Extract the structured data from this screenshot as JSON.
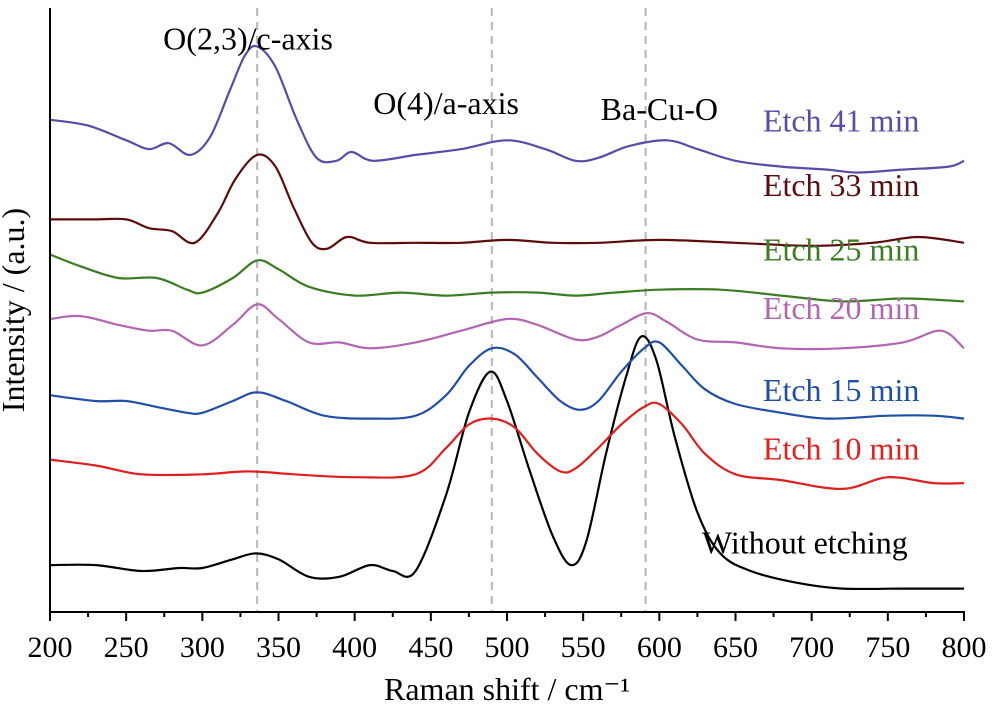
{
  "chart_data": {
    "type": "line",
    "xlabel": "Raman shift / cm⁻¹",
    "ylabel": "Intensity / (a.u.)",
    "xlim": [
      200,
      800
    ],
    "ylim": [
      0,
      100
    ],
    "xticks": [
      "200",
      "250",
      "300",
      "350",
      "400",
      "450",
      "500",
      "550",
      "600",
      "650",
      "700",
      "750",
      "800"
    ],
    "y_tick_labels": false,
    "grid": false,
    "reference_lines_x": [
      336,
      490,
      591
    ],
    "annotations": [
      {
        "text": "O(2,3)/c-axis",
        "x": 330,
        "y": 96
      },
      {
        "text": "O(4)/a-axis",
        "x": 460,
        "y": 85
      },
      {
        "text": "Ba-Cu-O",
        "x": 600,
        "y": 84
      }
    ],
    "series": [
      {
        "name": "Without etching",
        "color": "#000000",
        "points": [
          [
            200,
            8
          ],
          [
            230,
            8
          ],
          [
            260,
            7
          ],
          [
            285,
            7.5
          ],
          [
            300,
            7.5
          ],
          [
            320,
            9
          ],
          [
            335,
            10
          ],
          [
            350,
            9
          ],
          [
            370,
            6
          ],
          [
            390,
            6
          ],
          [
            410,
            8
          ],
          [
            425,
            7
          ],
          [
            440,
            7
          ],
          [
            460,
            20
          ],
          [
            475,
            34
          ],
          [
            489,
            41
          ],
          [
            500,
            36
          ],
          [
            515,
            24
          ],
          [
            530,
            13
          ],
          [
            542,
            8
          ],
          [
            552,
            12
          ],
          [
            565,
            27
          ],
          [
            578,
            40
          ],
          [
            588,
            47
          ],
          [
            598,
            43
          ],
          [
            610,
            30
          ],
          [
            625,
            17
          ],
          [
            640,
            10
          ],
          [
            660,
            7
          ],
          [
            690,
            5
          ],
          [
            720,
            4
          ],
          [
            760,
            4
          ],
          [
            800,
            4
          ]
        ]
      },
      {
        "name": "Etch 10 min",
        "color": "#e01f1f",
        "points": [
          [
            200,
            26
          ],
          [
            230,
            25
          ],
          [
            260,
            23.5
          ],
          [
            300,
            23.5
          ],
          [
            330,
            24
          ],
          [
            360,
            23.5
          ],
          [
            400,
            23
          ],
          [
            440,
            23.5
          ],
          [
            460,
            28
          ],
          [
            475,
            32
          ],
          [
            490,
            33
          ],
          [
            505,
            31.5
          ],
          [
            520,
            27
          ],
          [
            535,
            24
          ],
          [
            545,
            24.5
          ],
          [
            560,
            28
          ],
          [
            575,
            32
          ],
          [
            590,
            35
          ],
          [
            600,
            35.5
          ],
          [
            615,
            32
          ],
          [
            630,
            27
          ],
          [
            650,
            23.5
          ],
          [
            680,
            22.5
          ],
          [
            720,
            21
          ],
          [
            750,
            23
          ],
          [
            780,
            22
          ],
          [
            800,
            22
          ]
        ]
      },
      {
        "name": "Etch 15 min",
        "color": "#1f4fa6",
        "points": [
          [
            200,
            37
          ],
          [
            230,
            36
          ],
          [
            250,
            36
          ],
          [
            270,
            35
          ],
          [
            290,
            34
          ],
          [
            300,
            34
          ],
          [
            320,
            36
          ],
          [
            336,
            37.5
          ],
          [
            355,
            36
          ],
          [
            380,
            33.5
          ],
          [
            410,
            33
          ],
          [
            440,
            33.5
          ],
          [
            460,
            37
          ],
          [
            475,
            42
          ],
          [
            490,
            45
          ],
          [
            505,
            44
          ],
          [
            520,
            40
          ],
          [
            535,
            36
          ],
          [
            548,
            34.5
          ],
          [
            560,
            36
          ],
          [
            575,
            41
          ],
          [
            590,
            45
          ],
          [
            600,
            46
          ],
          [
            615,
            42
          ],
          [
            630,
            38
          ],
          [
            650,
            35.5
          ],
          [
            680,
            34
          ],
          [
            710,
            33
          ],
          [
            750,
            33.5
          ],
          [
            780,
            33.5
          ],
          [
            800,
            33
          ]
        ]
      },
      {
        "name": "Etch 20 min",
        "color": "#b266b2",
        "points": [
          [
            200,
            50
          ],
          [
            220,
            50.5
          ],
          [
            245,
            49
          ],
          [
            265,
            48
          ],
          [
            280,
            48
          ],
          [
            300,
            45.5
          ],
          [
            320,
            49
          ],
          [
            336,
            52.5
          ],
          [
            350,
            50
          ],
          [
            370,
            46
          ],
          [
            390,
            46
          ],
          [
            410,
            45
          ],
          [
            440,
            46
          ],
          [
            470,
            48
          ],
          [
            500,
            50
          ],
          [
            520,
            49
          ],
          [
            545,
            46.5
          ],
          [
            560,
            47
          ],
          [
            575,
            49
          ],
          [
            592,
            51
          ],
          [
            605,
            49.5
          ],
          [
            625,
            46.5
          ],
          [
            650,
            46
          ],
          [
            680,
            45
          ],
          [
            720,
            45
          ],
          [
            760,
            46
          ],
          [
            785,
            48
          ],
          [
            800,
            45
          ]
        ]
      },
      {
        "name": "Etch 25 min",
        "color": "#3c7d22",
        "points": [
          [
            200,
            61
          ],
          [
            220,
            59
          ],
          [
            245,
            57
          ],
          [
            270,
            57
          ],
          [
            290,
            55
          ],
          [
            300,
            54.5
          ],
          [
            320,
            57
          ],
          [
            336,
            60
          ],
          [
            350,
            58.5
          ],
          [
            370,
            55.5
          ],
          [
            400,
            54
          ],
          [
            430,
            54.5
          ],
          [
            460,
            54
          ],
          [
            490,
            54.5
          ],
          [
            520,
            54.5
          ],
          [
            545,
            54
          ],
          [
            570,
            54.5
          ],
          [
            600,
            55
          ],
          [
            640,
            55
          ],
          [
            680,
            54
          ],
          [
            720,
            53
          ],
          [
            760,
            53.5
          ],
          [
            800,
            53
          ]
        ]
      },
      {
        "name": "Etch 33 min",
        "color": "#5c0c0c",
        "points": [
          [
            200,
            67
          ],
          [
            230,
            67
          ],
          [
            250,
            67
          ],
          [
            265,
            65.5
          ],
          [
            280,
            65
          ],
          [
            295,
            63
          ],
          [
            310,
            68
          ],
          [
            322,
            74
          ],
          [
            336,
            78
          ],
          [
            348,
            76
          ],
          [
            360,
            69
          ],
          [
            372,
            63
          ],
          [
            382,
            62
          ],
          [
            395,
            64
          ],
          [
            410,
            63
          ],
          [
            440,
            63
          ],
          [
            470,
            63
          ],
          [
            500,
            63.5
          ],
          [
            530,
            63
          ],
          [
            560,
            63
          ],
          [
            600,
            63.5
          ],
          [
            650,
            63
          ],
          [
            700,
            62.5
          ],
          [
            740,
            63
          ],
          [
            770,
            64
          ],
          [
            800,
            63
          ]
        ]
      },
      {
        "name": "Etch 41 min",
        "color": "#5b4aa8",
        "points": [
          [
            200,
            84
          ],
          [
            225,
            83
          ],
          [
            250,
            80.5
          ],
          [
            265,
            79
          ],
          [
            278,
            80
          ],
          [
            292,
            78
          ],
          [
            305,
            81
          ],
          [
            318,
            89
          ],
          [
            328,
            95
          ],
          [
            336,
            96.5
          ],
          [
            348,
            93
          ],
          [
            362,
            84
          ],
          [
            375,
            77.5
          ],
          [
            388,
            77
          ],
          [
            398,
            78.5
          ],
          [
            412,
            77
          ],
          [
            440,
            78
          ],
          [
            470,
            79
          ],
          [
            500,
            80.5
          ],
          [
            525,
            79
          ],
          [
            545,
            77
          ],
          [
            560,
            77.5
          ],
          [
            580,
            79.5
          ],
          [
            605,
            80.5
          ],
          [
            625,
            79
          ],
          [
            650,
            77
          ],
          [
            680,
            76
          ],
          [
            710,
            75.5
          ],
          [
            730,
            75
          ],
          [
            760,
            75.5
          ],
          [
            790,
            76
          ],
          [
            800,
            77
          ]
        ]
      }
    ],
    "series_labels": [
      {
        "text": "Etch 41 min",
        "x": 668,
        "y": 82,
        "color": "#5b4aa8"
      },
      {
        "text": "Etch 33 min",
        "x": 668,
        "y": 71,
        "color": "#5c0c0c"
      },
      {
        "text": "Etch 25 min",
        "x": 668,
        "y": 60,
        "color": "#3c7d22"
      },
      {
        "text": "Etch 20 min",
        "x": 668,
        "y": 50,
        "color": "#b266b2"
      },
      {
        "text": "Etch 15 min",
        "x": 668,
        "y": 36,
        "color": "#1f4fa6"
      },
      {
        "text": "Etch 10 min",
        "x": 668,
        "y": 26,
        "color": "#e01f1f"
      },
      {
        "text": "Without etching",
        "x": 628,
        "y": 10,
        "color": "#000000"
      }
    ]
  }
}
